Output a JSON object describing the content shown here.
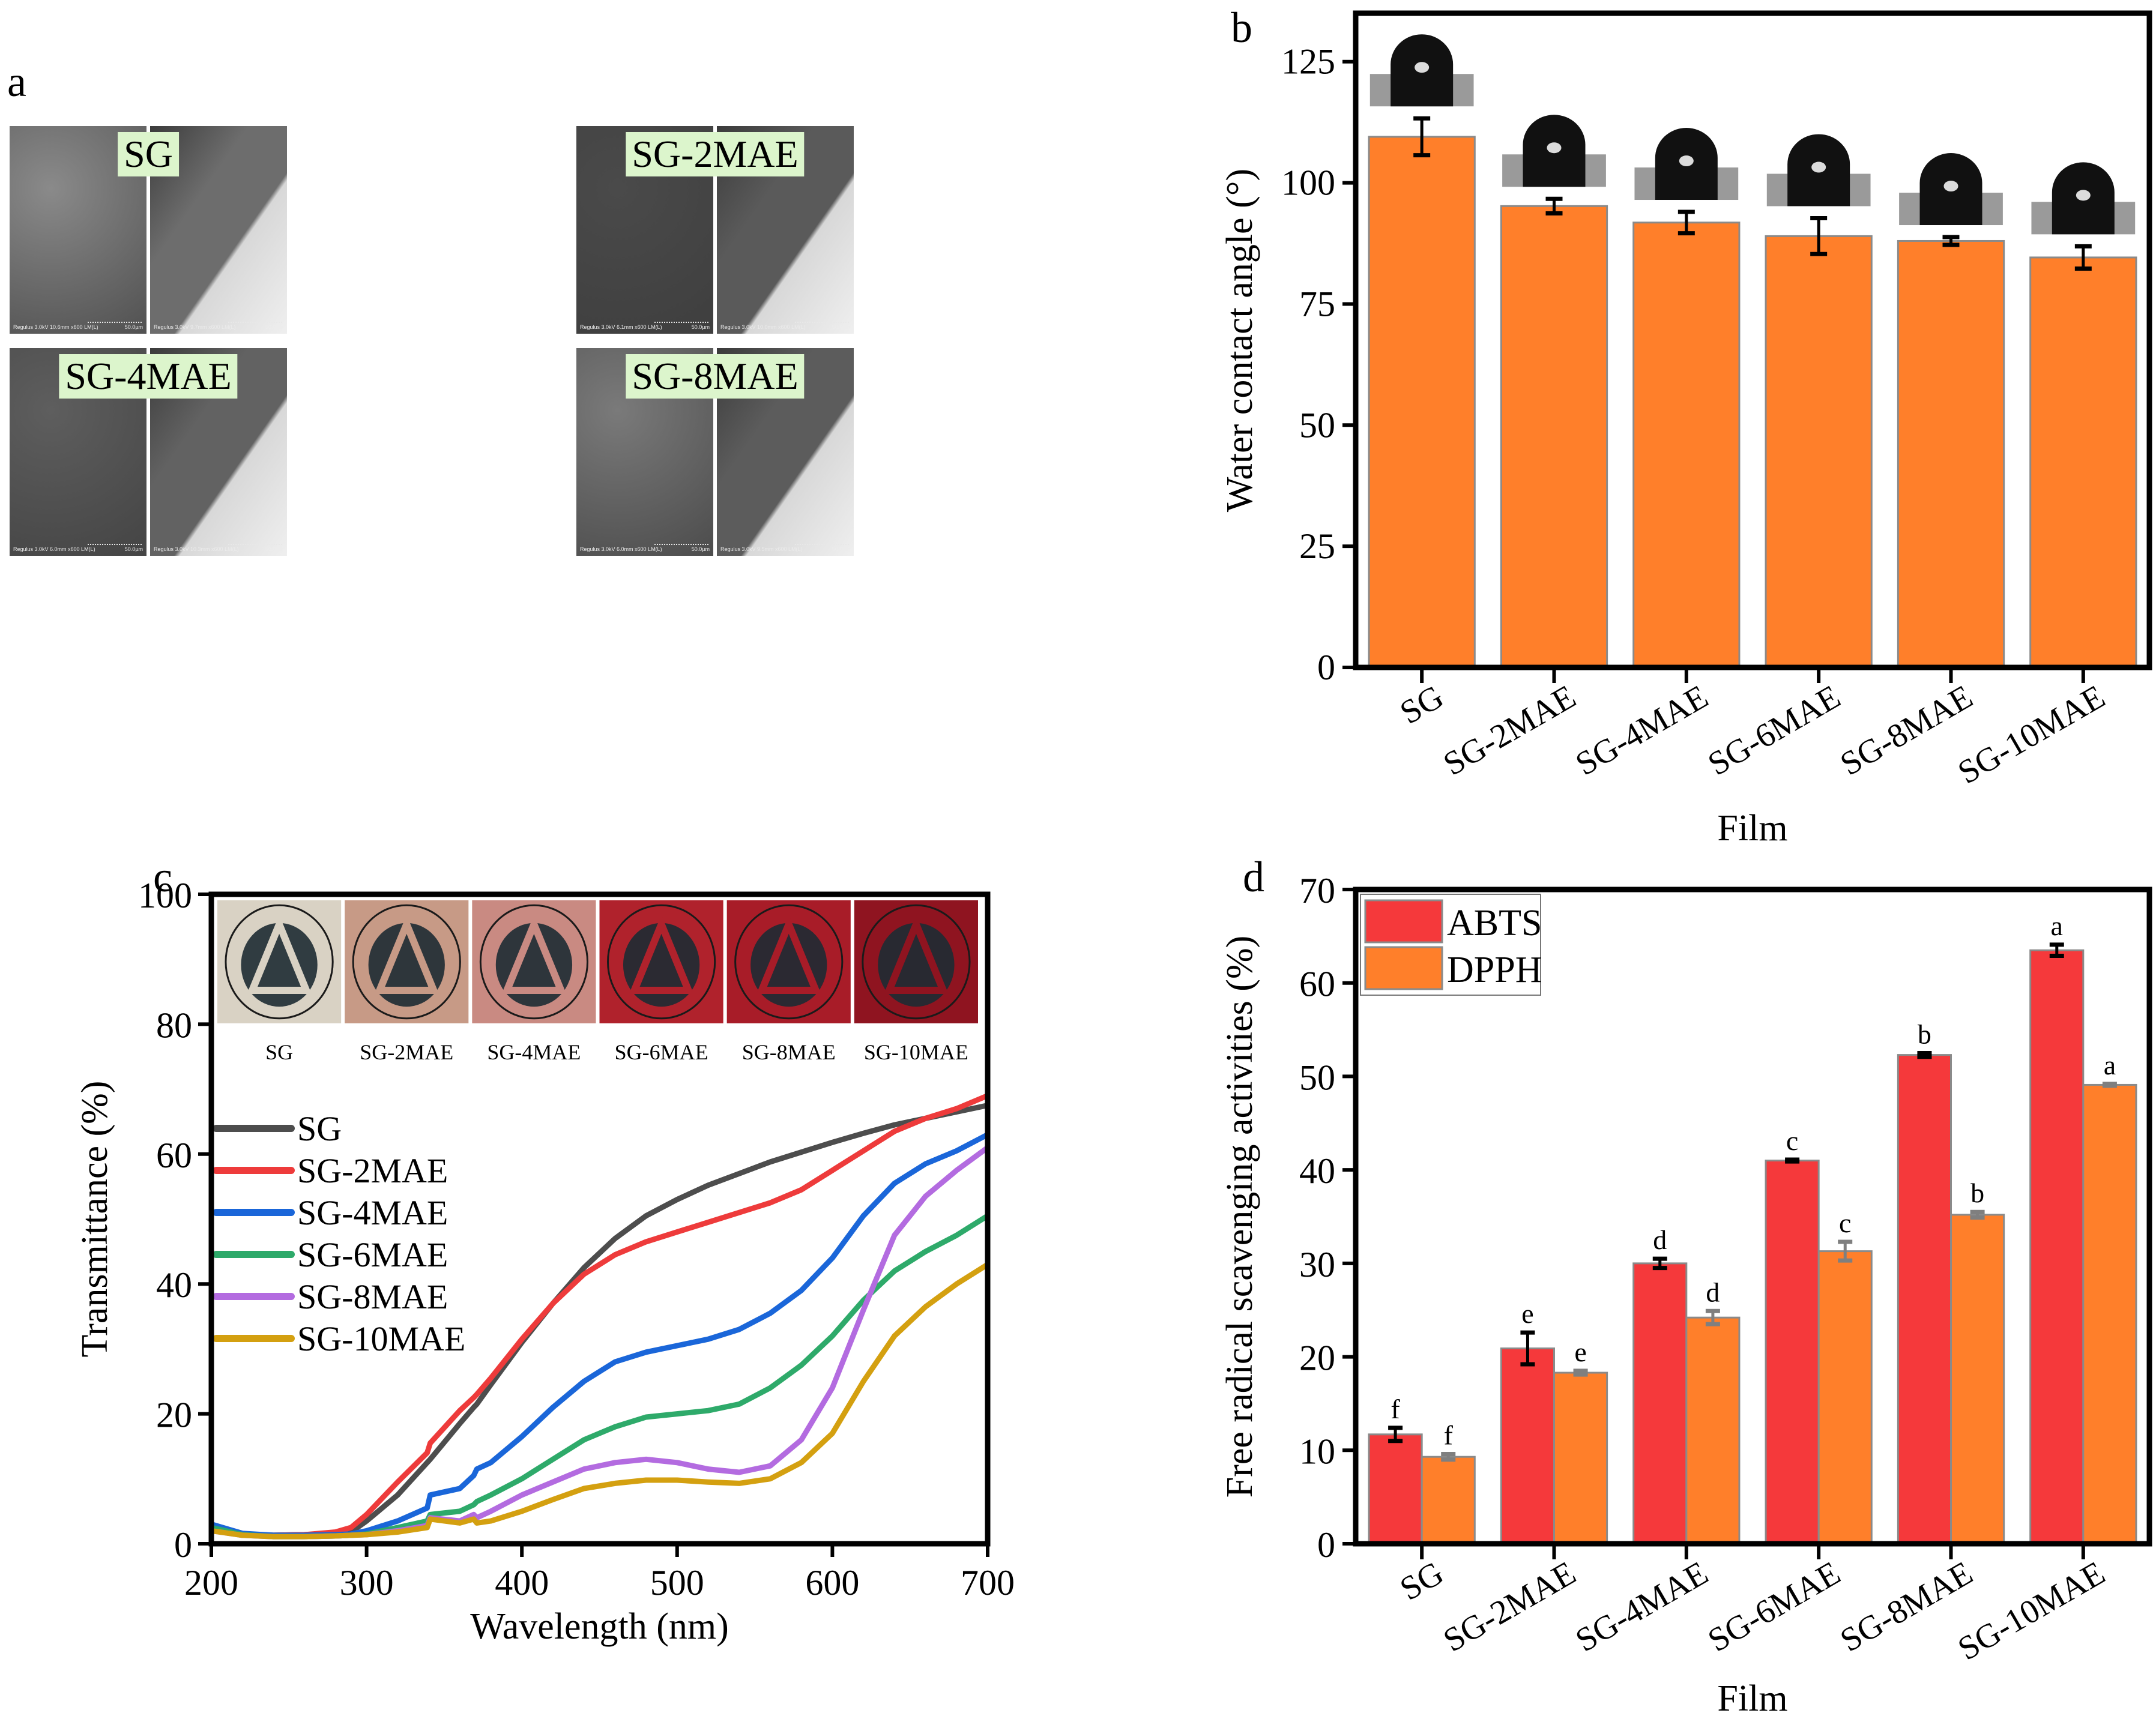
{
  "panels": {
    "a": {
      "letter": "a",
      "tiles": [
        {
          "label": "SG",
          "surface_caption": "Regulus 3.0kV 10.6mm x600 LM(L)",
          "cross_caption": "Regulus 3.0kV 9.7mm x600 LM(L)",
          "scale": "50.0µm",
          "surface_tone": "#8a8a8a",
          "cross_tone": "#6d6d6d"
        },
        {
          "label": "SG-2MAE",
          "surface_caption": "Regulus 3.0kV 6.1mm x600 LM(L)",
          "cross_caption": "Regulus 3.0kV 10.0mm x600 LM(L)",
          "scale": "50.0µm",
          "surface_tone": "#4a4a4a",
          "cross_tone": "#5a5a5a"
        },
        {
          "label": "SG-4MAE",
          "surface_caption": "Regulus 3.0kV 6.0mm x600 LM(L)",
          "cross_caption": "Regulus 3.0kV 10.3mm x600 LM(L)",
          "scale": "50.0µm",
          "surface_tone": "#5e5e5e",
          "cross_tone": "#626262"
        },
        {
          "label": "SG-8MAE",
          "surface_caption": "Regulus 3.0kV 6.0mm x600 LM(L)",
          "cross_caption": "Regulus 3.0kV 9.5mm x600 LM(L)",
          "scale": "50.0µm",
          "surface_tone": "#7a7a7a",
          "cross_tone": "#5c5c5c"
        }
      ]
    },
    "c_photos": [
      {
        "label": "SG",
        "color": "#d9d2c4"
      },
      {
        "label": "SG-2MAE",
        "color": "#c79a86"
      },
      {
        "label": "SG-4MAE",
        "color": "#c98a82"
      },
      {
        "label": "SG-6MAE",
        "color": "#b0222c"
      },
      {
        "label": "SG-8MAE",
        "color": "#a81c28"
      },
      {
        "label": "SG-10MAE",
        "color": "#8f1420"
      }
    ]
  },
  "chart_data": [
    {
      "id": "b",
      "letter": "b",
      "type": "bar",
      "title": "",
      "xlabel": "Film",
      "ylabel": "Water contact angle (°)",
      "categories": [
        "SG",
        "SG-2MAE",
        "SG-4MAE",
        "SG-6MAE",
        "SG-8MAE",
        "SG-10MAE"
      ],
      "values": [
        109.5,
        95.2,
        91.8,
        89.0,
        88.0,
        84.6
      ],
      "errors": [
        3.8,
        1.5,
        2.2,
        3.7,
        0.8,
        2.3
      ],
      "ylim": [
        0,
        135
      ],
      "yticks": [
        0,
        25,
        50,
        75,
        100,
        125
      ],
      "bar_color": "#ff7f2a",
      "insets": "water droplet images above each bar",
      "grid": false
    },
    {
      "id": "c",
      "letter": "c",
      "type": "line",
      "xlabel": "Wavelength (nm)",
      "ylabel": "Transmittance (%)",
      "xlim": [
        200,
        700
      ],
      "ylim": [
        0,
        100
      ],
      "xticks": [
        200,
        300,
        400,
        500,
        600,
        700
      ],
      "yticks": [
        0,
        20,
        40,
        60,
        80,
        100
      ],
      "legend_position": "center-left",
      "x": [
        200,
        220,
        240,
        260,
        280,
        290,
        300,
        320,
        339,
        341,
        360,
        369,
        371,
        380,
        400,
        420,
        440,
        460,
        480,
        500,
        520,
        540,
        560,
        580,
        600,
        620,
        640,
        660,
        680,
        700
      ],
      "series": [
        {
          "name": "SG",
          "color": "#4d4d4d",
          "values": [
            2.5,
            1.5,
            1.3,
            1.4,
            1.6,
            1.8,
            3.5,
            7.5,
            12.5,
            13.0,
            18.5,
            21.0,
            21.5,
            24.5,
            31.0,
            37.0,
            42.5,
            47.0,
            50.5,
            53.0,
            55.2,
            57.0,
            58.8,
            60.3,
            61.8,
            63.2,
            64.5,
            65.5,
            66.5,
            67.5
          ]
        },
        {
          "name": "SG-2MAE",
          "color": "#ee3b3b",
          "values": [
            2.3,
            1.4,
            1.3,
            1.4,
            1.8,
            2.5,
            4.5,
            9.5,
            14.0,
            15.5,
            20.5,
            22.5,
            23.0,
            25.5,
            31.5,
            37.0,
            41.5,
            44.5,
            46.5,
            48.0,
            49.5,
            51.0,
            52.5,
            54.5,
            57.5,
            60.5,
            63.5,
            65.5,
            67.0,
            69.0
          ]
        },
        {
          "name": "SG-4MAE",
          "color": "#1a66d9",
          "values": [
            3.0,
            1.6,
            1.3,
            1.3,
            1.4,
            1.5,
            2.0,
            3.5,
            5.5,
            7.5,
            8.5,
            10.5,
            11.5,
            12.5,
            16.5,
            21.0,
            25.0,
            28.0,
            29.5,
            30.5,
            31.5,
            33.0,
            35.5,
            39.0,
            44.0,
            50.5,
            55.5,
            58.5,
            60.5,
            63.0
          ]
        },
        {
          "name": "SG-6MAE",
          "color": "#2eaa6a",
          "values": [
            2.5,
            1.4,
            1.1,
            1.1,
            1.2,
            1.3,
            1.5,
            2.5,
            3.5,
            4.5,
            5.0,
            6.0,
            6.5,
            7.5,
            10.0,
            13.0,
            16.0,
            18.0,
            19.5,
            20.0,
            20.5,
            21.5,
            24.0,
            27.5,
            32.0,
            37.5,
            42.0,
            45.0,
            47.5,
            50.5
          ]
        },
        {
          "name": "SG-8MAE",
          "color": "#b36be0",
          "values": [
            2.0,
            1.3,
            1.1,
            1.1,
            1.2,
            1.3,
            1.4,
            2.0,
            2.8,
            4.0,
            3.5,
            4.5,
            4.0,
            5.0,
            7.5,
            9.5,
            11.5,
            12.5,
            13.0,
            12.5,
            11.5,
            11.0,
            12.0,
            16.0,
            24.0,
            36.0,
            47.5,
            53.5,
            57.5,
            61.0
          ]
        },
        {
          "name": "SG-10MAE",
          "color": "#d4a010",
          "values": [
            2.0,
            1.3,
            1.1,
            1.1,
            1.2,
            1.3,
            1.4,
            1.8,
            2.5,
            3.8,
            3.2,
            3.8,
            3.2,
            3.5,
            5.0,
            6.8,
            8.5,
            9.3,
            9.8,
            9.8,
            9.5,
            9.3,
            10.0,
            12.5,
            17.0,
            25.0,
            32.0,
            36.5,
            40.0,
            43.0
          ]
        }
      ],
      "grid": false
    },
    {
      "id": "d",
      "letter": "d",
      "type": "bar",
      "xlabel": "Film",
      "ylabel": "Free radical scavenging activities (%)",
      "categories": [
        "SG",
        "SG-2MAE",
        "SG-4MAE",
        "SG-6MAE",
        "SG-8MAE",
        "SG-10MAE"
      ],
      "ylim": [
        0,
        70
      ],
      "yticks": [
        0,
        10,
        20,
        30,
        40,
        50,
        60,
        70
      ],
      "legend_position": "top-left",
      "series": [
        {
          "name": "ABTS",
          "color": "#f5393b",
          "err_color": "#000000",
          "values": [
            11.7,
            20.9,
            30.0,
            41.0,
            52.3,
            63.5
          ],
          "errors": [
            0.7,
            1.7,
            0.5,
            0.1,
            0.2,
            0.6
          ],
          "letters": [
            "f",
            "e",
            "d",
            "c",
            "b",
            "a"
          ]
        },
        {
          "name": "DPPH",
          "color": "#ff7f2a",
          "err_color": "#7f7f7f",
          "values": [
            9.3,
            18.3,
            24.2,
            31.3,
            35.2,
            49.1
          ],
          "errors": [
            0.3,
            0.2,
            0.7,
            1.0,
            0.3,
            0.1
          ],
          "letters": [
            "f",
            "e",
            "d",
            "c",
            "b",
            "a"
          ]
        }
      ],
      "grid": false
    }
  ]
}
